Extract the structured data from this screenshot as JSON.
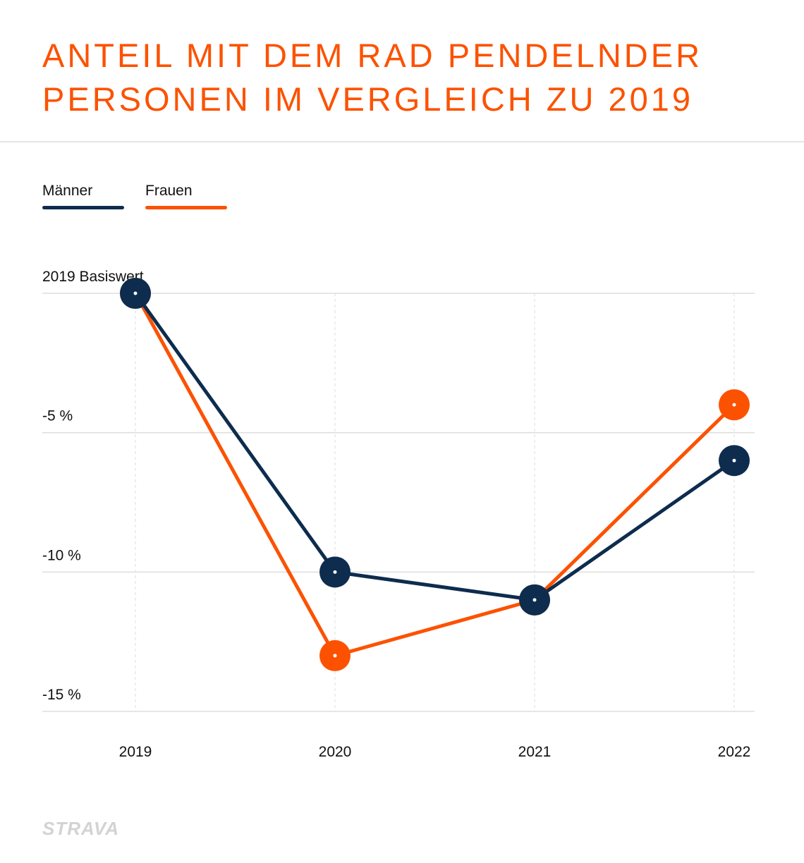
{
  "title": {
    "line1": "ANTEIL MIT DEM RAD PENDELNDER",
    "line2": "PERSONEN IM VERGLEICH ZU 2019"
  },
  "legend": [
    {
      "label": "Männer",
      "color": "#0d2c4e"
    },
    {
      "label": "Frauen",
      "color": "#fc5200"
    }
  ],
  "brand": "STRAVA",
  "chart_data": {
    "type": "line",
    "title": "Anteil mit dem Rad pendelnder Personen im Vergleich zu 2019",
    "categories": [
      "2019",
      "2020",
      "2021",
      "2022"
    ],
    "series": [
      {
        "name": "Männer",
        "color": "#0d2c4e",
        "values": [
          0,
          -10,
          -11,
          -6
        ]
      },
      {
        "name": "Frauen",
        "color": "#fc5200",
        "values": [
          0,
          -13,
          -11,
          -4
        ]
      }
    ],
    "ylim": [
      -15,
      0
    ],
    "yticks": [
      {
        "value": 0,
        "label": "2019 Basiswert"
      },
      {
        "value": -5,
        "label": "-5 %"
      },
      {
        "value": -10,
        "label": "-10 %"
      },
      {
        "value": -15,
        "label": "-15 %"
      }
    ],
    "xlabel": "",
    "ylabel": "",
    "grid": true
  }
}
